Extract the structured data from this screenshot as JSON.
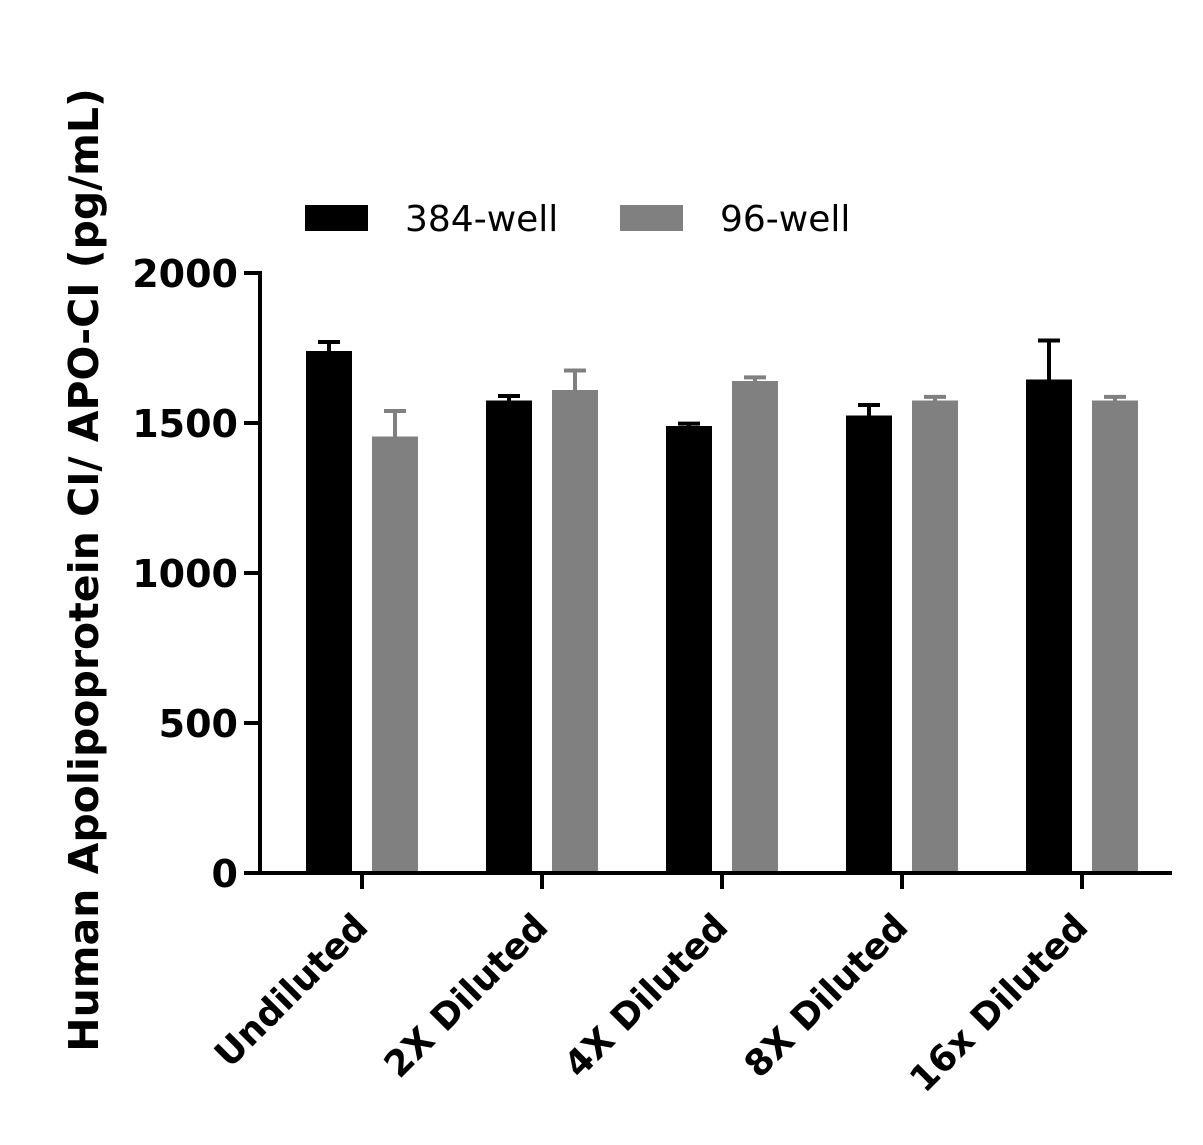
{
  "chart_data": {
    "type": "bar",
    "title": "",
    "xlabel": "",
    "ylabel": "Human Apolipoprotein CI/ APO-CI (pg/mL)",
    "categories": [
      "Undiluted",
      "2X Diluted",
      "4X Diluted",
      "8X Diluted",
      "16x Diluted"
    ],
    "series": [
      {
        "name": "384-well",
        "color": "#000000",
        "values": [
          1740,
          1575,
          1490,
          1525,
          1645
        ],
        "errors": [
          30,
          15,
          8,
          35,
          130
        ]
      },
      {
        "name": "96-well",
        "color": "#808080",
        "values": [
          1455,
          1610,
          1640,
          1575,
          1575
        ],
        "errors": [
          85,
          65,
          12,
          12,
          12
        ]
      }
    ],
    "ylim": [
      0,
      2000
    ],
    "yticks": [
      0,
      500,
      1000,
      1500,
      2000
    ],
    "grid": false,
    "legend_position": "top-left"
  }
}
